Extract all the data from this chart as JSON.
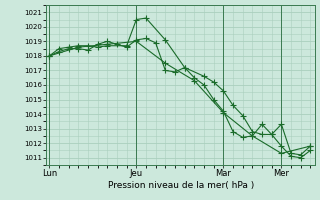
{
  "bg_color": "#cce8dc",
  "grid_color": "#aacfbe",
  "line_color": "#1a6b2a",
  "marker_color": "#1a6b2a",
  "xlabel": "Pression niveau de la mer( hPa )",
  "ylim": [
    1010.5,
    1021.5
  ],
  "yticks": [
    1011,
    1012,
    1013,
    1014,
    1015,
    1016,
    1017,
    1018,
    1019,
    1020,
    1021
  ],
  "xtick_labels": [
    "Lun",
    "Jeu",
    "Mar",
    "Mer"
  ],
  "xtick_positions": [
    0,
    9,
    18,
    24
  ],
  "vline_positions": [
    0,
    9,
    18,
    24
  ],
  "xlim": [
    -0.3,
    27.5
  ],
  "series1_x": [
    0,
    1,
    2,
    3,
    4,
    5,
    6,
    8,
    9,
    10,
    12,
    14,
    16,
    17,
    18,
    19,
    20,
    21,
    22,
    23,
    24,
    25,
    26,
    27
  ],
  "series1_y": [
    1018.0,
    1018.5,
    1018.6,
    1018.7,
    1018.7,
    1018.6,
    1018.7,
    1018.7,
    1020.5,
    1020.6,
    1019.1,
    1017.2,
    1016.6,
    1016.2,
    1015.6,
    1014.6,
    1013.9,
    1012.8,
    1012.6,
    1012.6,
    1013.3,
    1011.3,
    1011.2,
    1011.8
  ],
  "series2_x": [
    0,
    1,
    2,
    3,
    4,
    5,
    6,
    7,
    8,
    9,
    10,
    11,
    12,
    13,
    14,
    15,
    16,
    17,
    18,
    19,
    20,
    21,
    22,
    23,
    24,
    25,
    26,
    27
  ],
  "series2_y": [
    1018.0,
    1018.3,
    1018.5,
    1018.5,
    1018.4,
    1018.8,
    1019.0,
    1018.8,
    1018.6,
    1019.1,
    1019.2,
    1018.9,
    1017.0,
    1016.9,
    1017.2,
    1016.5,
    1016.0,
    1015.0,
    1014.2,
    1012.8,
    1012.4,
    1012.5,
    1013.3,
    1012.6,
    1011.8,
    1011.1,
    1011.0,
    1011.5
  ],
  "series3_x": [
    0,
    3,
    6,
    9,
    12,
    15,
    18,
    21,
    24,
    27
  ],
  "series3_y": [
    1018.0,
    1018.6,
    1018.8,
    1019.0,
    1017.5,
    1016.3,
    1014.1,
    1012.5,
    1011.3,
    1011.8
  ]
}
